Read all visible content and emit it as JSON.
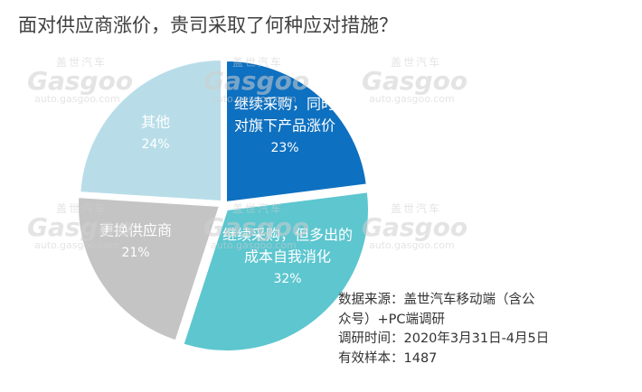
{
  "title": "面对供应商涨价，贵司采取了何种应对措施？",
  "chart_data": {
    "type": "pie",
    "slices": [
      {
        "label_lines": [
          "继续采购，同时",
          "对旗下产品涨价"
        ],
        "value": 23,
        "value_label": "23%",
        "color": "#0e70c0",
        "text_color": "#ffffff"
      },
      {
        "label_lines": [
          "继续采购，但多出的",
          "成本自我消化"
        ],
        "value": 32,
        "value_label": "32%",
        "color": "#5dc6cf",
        "text_color": "#ffffff"
      },
      {
        "label_lines": [
          "更换供应商"
        ],
        "value": 21,
        "value_label": "21%",
        "color": "#c4c4c4",
        "text_color": "#ffffff"
      },
      {
        "label_lines": [
          "其他"
        ],
        "value": 24,
        "value_label": "24%",
        "color": "#b8dde8",
        "text_color": "#ffffff"
      }
    ],
    "start_angle_deg": 0,
    "direction": "clockwise"
  },
  "source": {
    "line1": "数据来源：盖世汽车移动端（含公",
    "line2": "众号）+PC端调研",
    "line3": "调研时间：2020年3月31日-4月5日",
    "line4": "有效样本：1487"
  },
  "watermark": {
    "cn": "盖世汽车",
    "brand": "Gasgoo",
    "url": "auto.gasgoo.com"
  }
}
